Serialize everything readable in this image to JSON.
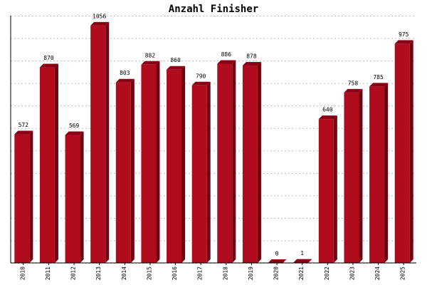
{
  "chart_data": {
    "type": "bar",
    "title": "Anzahl Finisher",
    "categories": [
      "2010",
      "2011",
      "2012",
      "2013",
      "2014",
      "2015",
      "2016",
      "2017",
      "2018",
      "2019",
      "2020",
      "2021",
      "2022",
      "2023",
      "2024",
      "2025"
    ],
    "values": [
      572,
      870,
      569,
      1056,
      803,
      882,
      860,
      790,
      886,
      878,
      0,
      1,
      640,
      758,
      785,
      975
    ],
    "color": "#b00c1e",
    "ylim": [
      0,
      1100
    ],
    "yticks": [
      0,
      100,
      200,
      300,
      400,
      500,
      600,
      700,
      800,
      900,
      1000,
      1100
    ],
    "grid": true
  }
}
